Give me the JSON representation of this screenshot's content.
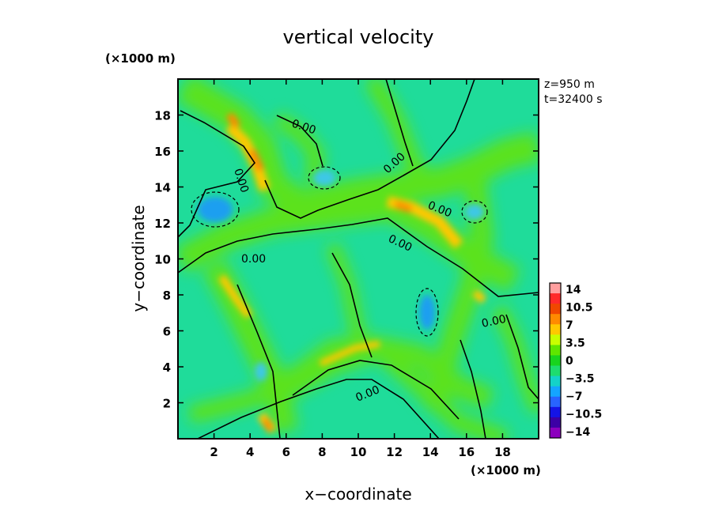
{
  "chart_data": {
    "type": "heatmap",
    "title": "vertical velocity",
    "xlabel": "x−coordinate",
    "ylabel": "y−coordinate",
    "x_unit": "(×1000 m)",
    "y_unit": "(×1000 m)",
    "xlim": [
      0,
      20
    ],
    "ylim": [
      0,
      20
    ],
    "x_ticks": [
      2,
      4,
      6,
      8,
      10,
      12,
      14,
      16,
      18
    ],
    "y_ticks": [
      2,
      4,
      6,
      8,
      10,
      12,
      14,
      16,
      18
    ],
    "x_tick_labels": [
      "2",
      "4",
      "6",
      "8",
      "10",
      "12",
      "14",
      "16",
      "18"
    ],
    "y_tick_labels": [
      "2",
      "4",
      "6",
      "8",
      "10",
      "12",
      "14",
      "16",
      "18"
    ],
    "annotations": [
      "z=950 m",
      "t=32400 s"
    ],
    "contour_labels": [
      "0.00",
      "0.00",
      "0.00",
      "0.00",
      "0.00",
      "0.00",
      "0.00",
      "0.00"
    ],
    "colorbar": {
      "ticks": [
        14,
        10.5,
        7,
        3.5,
        0,
        -3.5,
        -7,
        -10.5,
        -14
      ],
      "tick_labels": [
        "14",
        "10.5",
        "7",
        "3.5",
        "0",
        "−3.5",
        "−7",
        "−10.5",
        "−14"
      ],
      "colors": [
        "#ff9f9f",
        "#ff2a2a",
        "#f04800",
        "#ff8a00",
        "#ffc800",
        "#c8ff00",
        "#5fe600",
        "#18d41e",
        "#1edc6e",
        "#14d2c8",
        "#14a5ff",
        "#2864ff",
        "#1414e6",
        "#3c00a5",
        "#8c00be"
      ]
    }
  }
}
